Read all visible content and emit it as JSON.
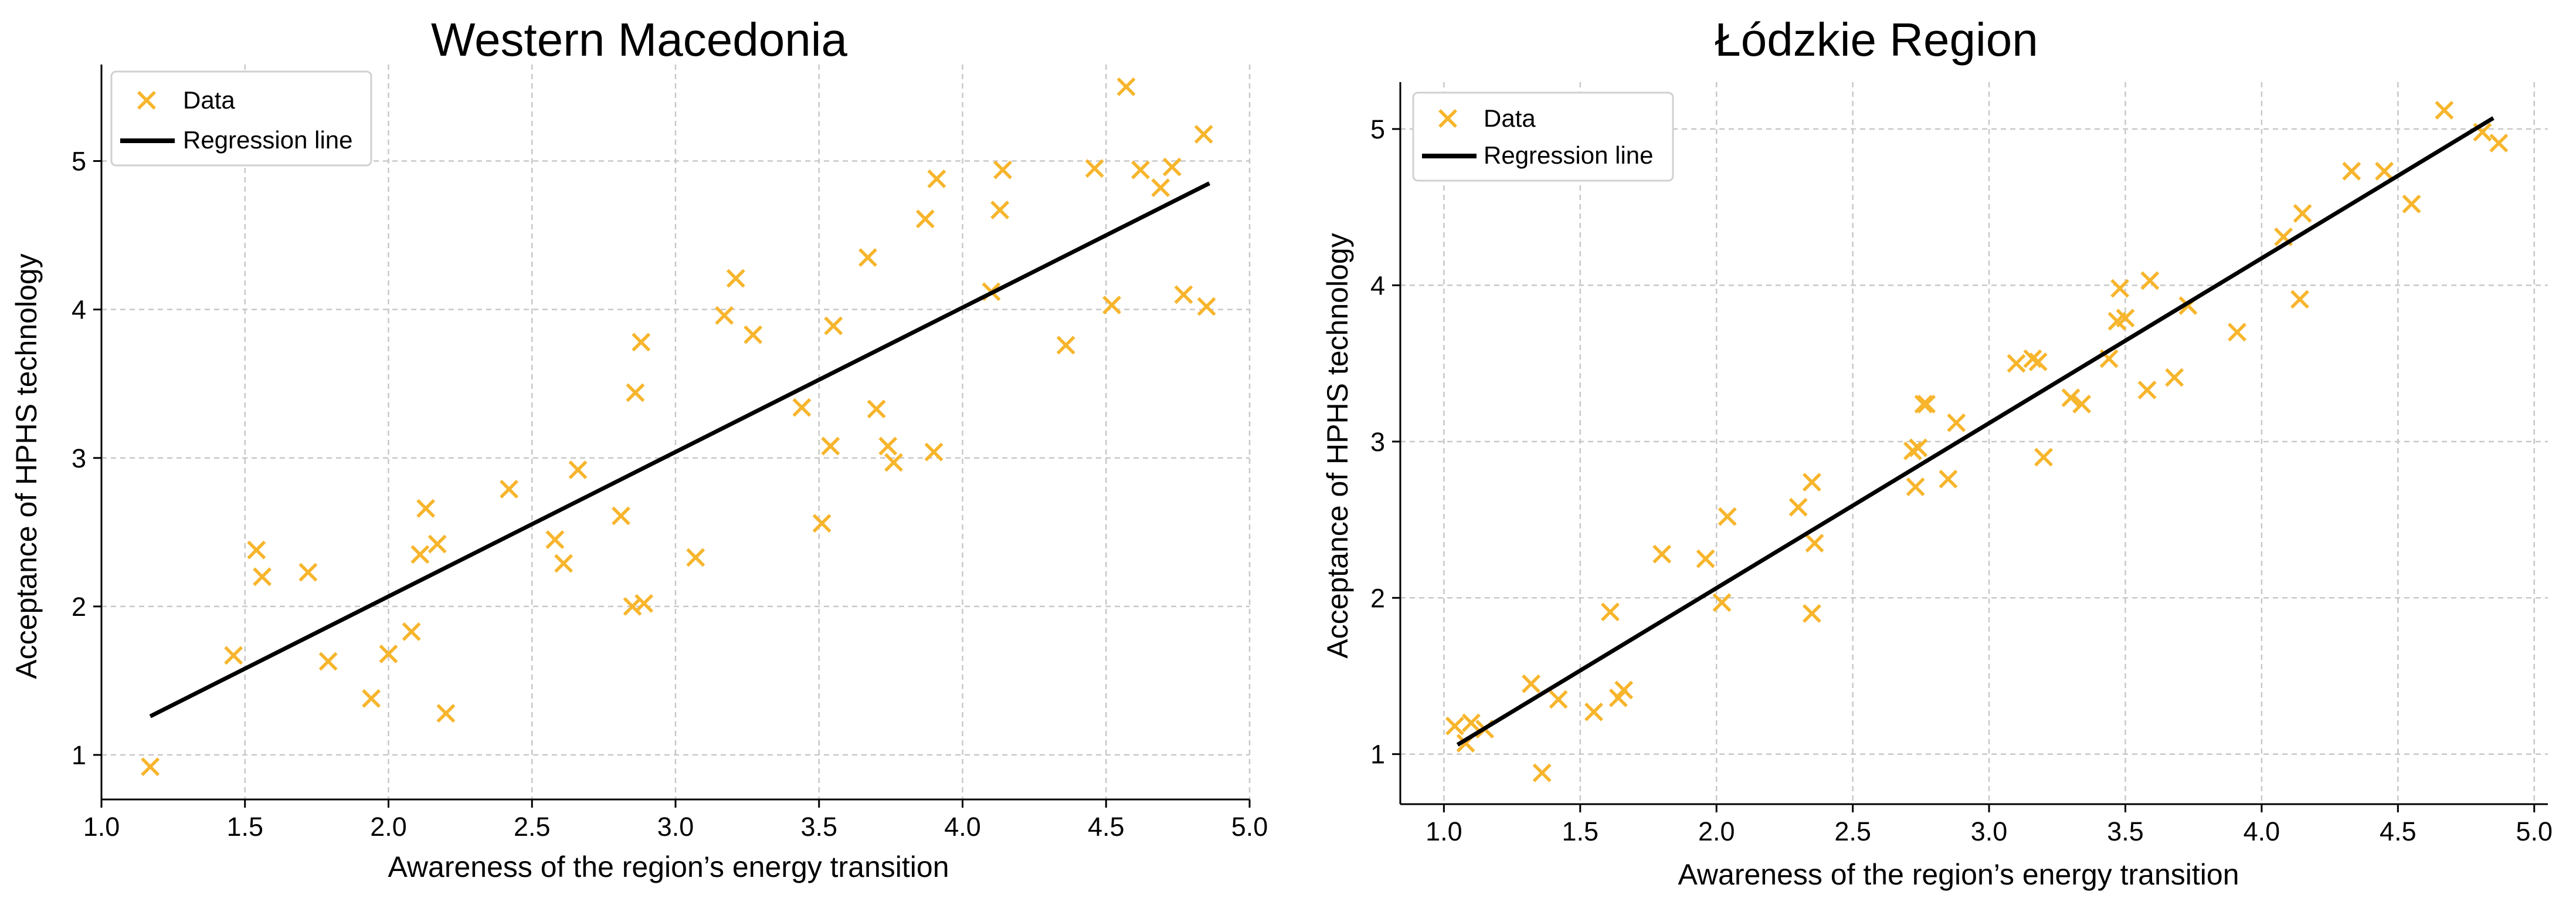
{
  "chart_data": [
    {
      "type": "scatter",
      "title": "Western Macedonia",
      "xlabel": "Awareness of the region’s energy transition",
      "ylabel": "Acceptance of HPHS technology",
      "xlim": [
        1.0,
        5.0
      ],
      "ylim": [
        0.7,
        5.65
      ],
      "xticks": [
        1.0,
        1.5,
        2.0,
        2.5,
        3.0,
        3.5,
        4.0,
        4.5,
        5.0
      ],
      "xtick_labels": [
        "1.0",
        "1.5",
        "2.0",
        "2.5",
        "3.0",
        "3.5",
        "4.0",
        "4.5",
        "5.0"
      ],
      "yticks": [
        1,
        2,
        3,
        4,
        5
      ],
      "ytick_labels": [
        "1",
        "2",
        "3",
        "4",
        "5"
      ],
      "grid": true,
      "legend_position": "top-left",
      "series": [
        {
          "name": "Data",
          "kind": "scatter",
          "marker": "x",
          "color": "#f7b52c",
          "points": [
            [
              1.17,
              0.92
            ],
            [
              1.46,
              1.67
            ],
            [
              1.54,
              2.38
            ],
            [
              1.56,
              2.2
            ],
            [
              1.72,
              2.23
            ],
            [
              1.79,
              1.63
            ],
            [
              1.94,
              1.38
            ],
            [
              2.0,
              1.68
            ],
            [
              2.08,
              1.83
            ],
            [
              2.11,
              2.35
            ],
            [
              2.13,
              2.66
            ],
            [
              2.17,
              2.42
            ],
            [
              2.2,
              1.28
            ],
            [
              2.42,
              2.79
            ],
            [
              2.58,
              2.45
            ],
            [
              2.61,
              2.29
            ],
            [
              2.66,
              2.92
            ],
            [
              2.81,
              2.61
            ],
            [
              2.85,
              2.0
            ],
            [
              2.86,
              3.44
            ],
            [
              2.88,
              3.78
            ],
            [
              2.89,
              2.02
            ],
            [
              3.07,
              2.33
            ],
            [
              3.17,
              3.96
            ],
            [
              3.21,
              4.21
            ],
            [
              3.27,
              3.83
            ],
            [
              3.44,
              3.34
            ],
            [
              3.51,
              2.56
            ],
            [
              3.54,
              3.08
            ],
            [
              3.55,
              3.89
            ],
            [
              3.67,
              4.35
            ],
            [
              3.7,
              3.33
            ],
            [
              3.74,
              3.08
            ],
            [
              3.76,
              2.97
            ],
            [
              3.87,
              4.61
            ],
            [
              3.9,
              3.04
            ],
            [
              3.91,
              4.88
            ],
            [
              4.1,
              4.12
            ],
            [
              4.13,
              4.67
            ],
            [
              4.14,
              4.94
            ],
            [
              4.36,
              3.76
            ],
            [
              4.46,
              4.95
            ],
            [
              4.52,
              4.03
            ],
            [
              4.57,
              5.5
            ],
            [
              4.62,
              4.94
            ],
            [
              4.69,
              4.82
            ],
            [
              4.73,
              4.96
            ],
            [
              4.77,
              4.1
            ],
            [
              4.84,
              5.18
            ],
            [
              4.85,
              4.02
            ]
          ]
        },
        {
          "name": "Regression line",
          "kind": "line",
          "color": "#000000",
          "x": [
            1.17,
            4.86
          ],
          "y": [
            1.26,
            4.85
          ]
        }
      ]
    },
    {
      "type": "scatter",
      "title": "Łódzkie Region",
      "xlabel": "Awareness of the region’s energy transition",
      "ylabel": "Acceptance of HPHS technology",
      "xlim": [
        0.84,
        5.05
      ],
      "ylim": [
        0.68,
        5.3
      ],
      "xticks": [
        1.0,
        1.5,
        2.0,
        2.5,
        3.0,
        3.5,
        4.0,
        4.5,
        5.0
      ],
      "xtick_labels": [
        "1.0",
        "1.5",
        "2.0",
        "2.5",
        "3.0",
        "3.5",
        "4.0",
        "4.5",
        "5.0"
      ],
      "yticks": [
        1,
        2,
        3,
        4,
        5
      ],
      "ytick_labels": [
        "1",
        "2",
        "3",
        "4",
        "5"
      ],
      "grid": true,
      "legend_position": "top-left",
      "series": [
        {
          "name": "Data",
          "kind": "scatter",
          "marker": "x",
          "color": "#f7b52c",
          "points": [
            [
              1.04,
              1.18
            ],
            [
              1.08,
              1.07
            ],
            [
              1.1,
              1.2
            ],
            [
              1.15,
              1.16
            ],
            [
              1.32,
              1.45
            ],
            [
              1.36,
              0.88
            ],
            [
              1.42,
              1.35
            ],
            [
              1.55,
              1.27
            ],
            [
              1.61,
              1.91
            ],
            [
              1.64,
              1.36
            ],
            [
              1.66,
              1.41
            ],
            [
              1.8,
              2.28
            ],
            [
              1.96,
              2.25
            ],
            [
              2.02,
              1.97
            ],
            [
              2.04,
              2.52
            ],
            [
              2.3,
              2.58
            ],
            [
              2.35,
              2.74
            ],
            [
              2.35,
              1.9
            ],
            [
              2.36,
              2.35
            ],
            [
              2.72,
              2.94
            ],
            [
              2.73,
              2.71
            ],
            [
              2.74,
              2.96
            ],
            [
              2.76,
              3.24
            ],
            [
              2.77,
              3.24
            ],
            [
              2.85,
              2.76
            ],
            [
              2.88,
              3.12
            ],
            [
              3.1,
              3.5
            ],
            [
              3.16,
              3.53
            ],
            [
              3.18,
              3.51
            ],
            [
              3.2,
              2.9
            ],
            [
              3.3,
              3.28
            ],
            [
              3.34,
              3.24
            ],
            [
              3.44,
              3.53
            ],
            [
              3.47,
              3.77
            ],
            [
              3.48,
              3.98
            ],
            [
              3.5,
              3.79
            ],
            [
              3.58,
              3.33
            ],
            [
              3.59,
              4.03
            ],
            [
              3.68,
              3.41
            ],
            [
              3.73,
              3.87
            ],
            [
              3.91,
              3.7
            ],
            [
              4.08,
              4.31
            ],
            [
              4.14,
              3.91
            ],
            [
              4.15,
              4.46
            ],
            [
              4.33,
              4.73
            ],
            [
              4.45,
              4.73
            ],
            [
              4.55,
              4.52
            ],
            [
              4.67,
              5.12
            ],
            [
              4.81,
              4.98
            ],
            [
              4.87,
              4.91
            ]
          ]
        },
        {
          "name": "Regression line",
          "kind": "line",
          "color": "#000000",
          "x": [
            1.05,
            4.85
          ],
          "y": [
            1.06,
            5.07
          ]
        }
      ]
    }
  ]
}
